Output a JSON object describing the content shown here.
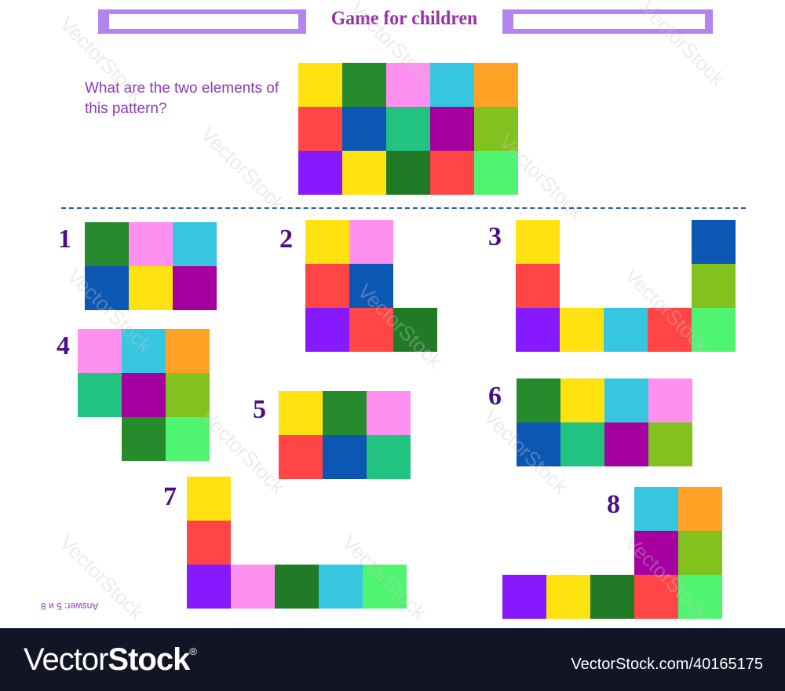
{
  "header": {
    "title": "Game for children"
  },
  "question": "What are the two elements of this pattern?",
  "colors": {
    "yellow": "#ffe20f",
    "darkgreen": "#278a2c",
    "pink": "#ff90f0",
    "cyan": "#36c6e0",
    "orange": "#ffa226",
    "red": "#ff4545",
    "blue": "#0c57b3",
    "teal": "#22c281",
    "purple": "#a5009f",
    "lime": "#81c21e",
    "violet": "#8719ff",
    "green2": "#217b26",
    "lightgreen": "#4ff470"
  },
  "pattern": [
    [
      "yellow",
      "darkgreen",
      "pink",
      "cyan",
      "orange"
    ],
    [
      "red",
      "blue",
      "teal",
      "purple",
      "lime"
    ],
    [
      "violet",
      "yellow",
      "green2",
      "red",
      "lightgreen"
    ]
  ],
  "options": [
    {
      "label": "1",
      "cells": [
        [
          0,
          0,
          "darkgreen"
        ],
        [
          1,
          0,
          "pink"
        ],
        [
          2,
          0,
          "cyan"
        ],
        [
          0,
          1,
          "blue"
        ],
        [
          1,
          1,
          "yellow"
        ],
        [
          2,
          1,
          "purple"
        ]
      ]
    },
    {
      "label": "2",
      "cells": [
        [
          0,
          0,
          "yellow"
        ],
        [
          1,
          0,
          "pink"
        ],
        [
          0,
          1,
          "red"
        ],
        [
          1,
          1,
          "blue"
        ],
        [
          0,
          2,
          "violet"
        ],
        [
          1,
          2,
          "red"
        ],
        [
          2,
          2,
          "green2"
        ]
      ]
    },
    {
      "label": "3",
      "cells": [
        [
          0,
          0,
          "yellow"
        ],
        [
          4,
          0,
          "blue"
        ],
        [
          0,
          1,
          "red"
        ],
        [
          4,
          1,
          "lime"
        ],
        [
          0,
          2,
          "violet"
        ],
        [
          1,
          2,
          "yellow"
        ],
        [
          2,
          2,
          "cyan"
        ],
        [
          3,
          2,
          "red"
        ],
        [
          4,
          2,
          "lightgreen"
        ]
      ]
    },
    {
      "label": "4",
      "cells": [
        [
          0,
          0,
          "pink"
        ],
        [
          1,
          0,
          "cyan"
        ],
        [
          2,
          0,
          "orange"
        ],
        [
          0,
          1,
          "teal"
        ],
        [
          1,
          1,
          "purple"
        ],
        [
          2,
          1,
          "lime"
        ],
        [
          1,
          2,
          "darkgreen"
        ],
        [
          2,
          2,
          "lightgreen"
        ]
      ]
    },
    {
      "label": "5",
      "cells": [
        [
          0,
          0,
          "yellow"
        ],
        [
          1,
          0,
          "darkgreen"
        ],
        [
          2,
          0,
          "pink"
        ],
        [
          0,
          1,
          "red"
        ],
        [
          1,
          1,
          "blue"
        ],
        [
          2,
          1,
          "teal"
        ]
      ]
    },
    {
      "label": "6",
      "cells": [
        [
          0,
          0,
          "darkgreen"
        ],
        [
          1,
          0,
          "yellow"
        ],
        [
          2,
          0,
          "cyan"
        ],
        [
          3,
          0,
          "pink"
        ],
        [
          0,
          1,
          "blue"
        ],
        [
          1,
          1,
          "teal"
        ],
        [
          2,
          1,
          "purple"
        ],
        [
          3,
          1,
          "lime"
        ]
      ]
    },
    {
      "label": "7",
      "cells": [
        [
          0,
          0,
          "yellow"
        ],
        [
          0,
          1,
          "red"
        ],
        [
          0,
          2,
          "violet"
        ],
        [
          1,
          2,
          "pink"
        ],
        [
          2,
          2,
          "green2"
        ],
        [
          3,
          2,
          "cyan"
        ],
        [
          4,
          2,
          "lightgreen"
        ]
      ]
    },
    {
      "label": "8",
      "cells": [
        [
          3,
          0,
          "cyan"
        ],
        [
          4,
          0,
          "orange"
        ],
        [
          3,
          1,
          "purple"
        ],
        [
          4,
          1,
          "lime"
        ],
        [
          0,
          2,
          "violet"
        ],
        [
          1,
          2,
          "yellow"
        ],
        [
          2,
          2,
          "green2"
        ],
        [
          3,
          2,
          "red"
        ],
        [
          4,
          2,
          "lightgreen"
        ]
      ]
    }
  ],
  "answer": "Answer: 5 и 8",
  "footer": {
    "logo_light": "Vector",
    "logo_bold": "Stock",
    "logo_reg": "®",
    "url": "VectorStock.com/40165175"
  },
  "watermark": "VectorStock"
}
